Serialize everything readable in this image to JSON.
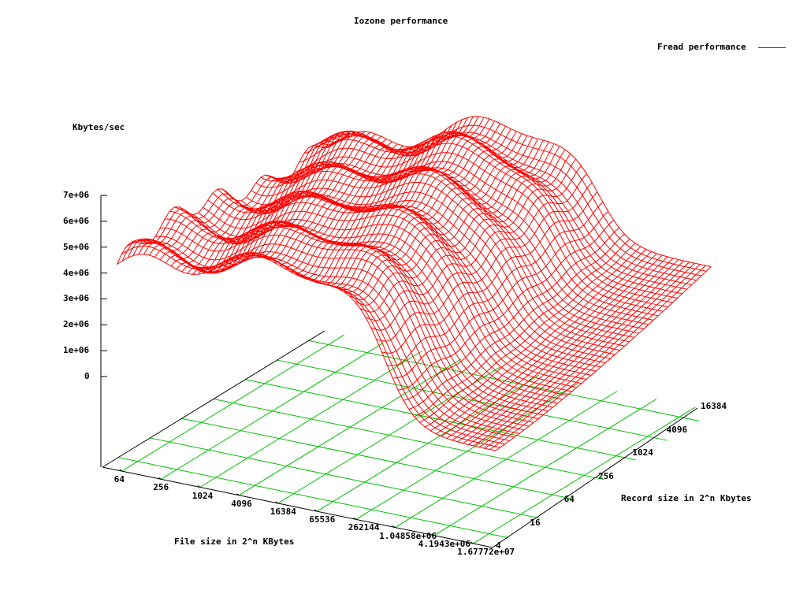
{
  "chart_data": {
    "type": "surface3d",
    "title": "Iozone performance",
    "zlabel": "Kbytes/sec",
    "xlabel": "File size in 2^n KBytes",
    "ylabel": "Record size in 2^n Kbytes",
    "legend": [
      {
        "name": "Fread performance",
        "color": "#ff0000"
      }
    ],
    "z_ticks": [
      "7e+06",
      "6e+06",
      "5e+06",
      "4e+06",
      "3e+06",
      "2e+06",
      "1e+06",
      "0"
    ],
    "z_range": [
      0,
      7000000
    ],
    "x_ticks": [
      "64",
      "256",
      "1024",
      "4096",
      "16384",
      "65536",
      "262144",
      "1.04858e+06",
      "4.1943e+06",
      "1.67772e+07"
    ],
    "y_ticks": [
      "4",
      "16",
      "64",
      "256",
      "1024",
      "4096",
      "16384"
    ],
    "grid": true,
    "grid_color": "#00c000",
    "surface_color": "#ff0000",
    "approx_shape": "Throughput ~3.5e+06 to ~6.5e+06 Kbytes/sec for file sizes up to ~262144 KB across record sizes; drops sharply toward ~0 at large file sizes (>1e+06 KB) with small record sizes, and ~2e+06 at large file sizes for large record sizes; peak ~7e+06 around file size 16384-65536 KB, record size 1024-4096 KB."
  }
}
